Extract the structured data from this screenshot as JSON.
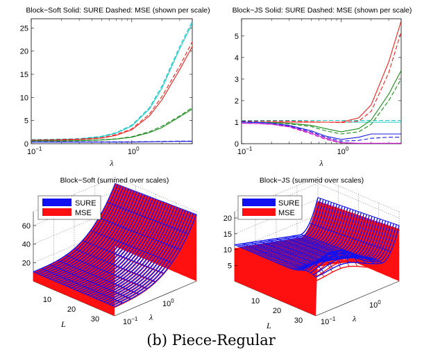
{
  "caption": "(b) Piece-Regular",
  "colors": {
    "cyan": "#19c6c6",
    "red": "#e8201c",
    "green": "#1a8a1a",
    "blue": "#1a1ae0",
    "magenta": "#c81ac8",
    "surface_blue": "#1010f0",
    "surface_red": "#ff1010"
  },
  "chart_data": [
    {
      "type": "line",
      "title": "Block−Soft Solid: SURE Dashed: MSE (shown per scale)",
      "xlabel": "λ",
      "ylabel": "",
      "xscale": "log",
      "xlim": [
        0.1,
        4
      ],
      "ylim": [
        0,
        27
      ],
      "yticks": [
        "0",
        "5",
        "10",
        "15",
        "20",
        "25"
      ],
      "xticks": [
        {
          "base": "10",
          "exp": "−1"
        },
        {
          "base": "10",
          "exp": "0"
        }
      ],
      "x": [
        0.1,
        0.15,
        0.2,
        0.3,
        0.5,
        0.7,
        1.0,
        1.5,
        2.0,
        3.0,
        4.0
      ],
      "series": [
        {
          "color": "cyan",
          "sure": [
            0.8,
            0.85,
            0.9,
            1.0,
            1.5,
            2.3,
            3.8,
            7.5,
            12.0,
            20.5,
            26.0
          ],
          "mse": [
            0.9,
            0.95,
            1.0,
            1.1,
            1.6,
            2.4,
            4.0,
            7.8,
            12.5,
            21.0,
            26.5
          ]
        },
        {
          "color": "red",
          "sure": [
            0.7,
            0.75,
            0.8,
            0.9,
            1.2,
            1.8,
            3.0,
            6.0,
            9.5,
            16.0,
            21.0
          ],
          "mse": [
            0.8,
            0.85,
            0.9,
            1.0,
            1.3,
            2.0,
            3.2,
            6.4,
            10.2,
            16.8,
            22.0
          ]
        },
        {
          "color": "green",
          "sure": [
            0.6,
            0.6,
            0.6,
            0.65,
            0.8,
            1.0,
            1.4,
            2.4,
            3.5,
            5.8,
            7.5
          ],
          "mse": [
            0.65,
            0.65,
            0.65,
            0.7,
            0.85,
            1.05,
            1.5,
            2.6,
            3.8,
            6.0,
            7.8
          ]
        },
        {
          "color": "blue",
          "sure": [
            0.35,
            0.35,
            0.35,
            0.35,
            0.35,
            0.35,
            0.35,
            0.4,
            0.45,
            0.5,
            0.5
          ],
          "mse": [
            0.4,
            0.4,
            0.4,
            0.4,
            0.4,
            0.4,
            0.4,
            0.45,
            0.5,
            0.55,
            0.55
          ]
        }
      ]
    },
    {
      "type": "line",
      "title": "Block−JS Solid: SURE Dashed: MSE (shown per scale)",
      "xlabel": "λ",
      "ylabel": "",
      "xscale": "log",
      "xlim": [
        0.1,
        4
      ],
      "ylim": [
        0,
        5.8
      ],
      "yticks": [
        "0",
        "1",
        "2",
        "3",
        "4",
        "5"
      ],
      "xticks": [
        {
          "base": "10",
          "exp": "−1"
        },
        {
          "base": "10",
          "exp": "0"
        }
      ],
      "x": [
        0.1,
        0.15,
        0.2,
        0.3,
        0.5,
        0.7,
        1.0,
        1.5,
        2.0,
        3.0,
        4.0
      ],
      "series": [
        {
          "color": "cyan",
          "sure": [
            1.0,
            1.0,
            1.0,
            1.0,
            1.0,
            1.0,
            1.0,
            1.0,
            1.0,
            1.0,
            1.0
          ],
          "mse": [
            1.08,
            1.08,
            1.08,
            1.08,
            1.08,
            1.08,
            1.08,
            1.08,
            1.08,
            1.08,
            1.08
          ]
        },
        {
          "color": "red",
          "sure": [
            1.0,
            1.0,
            1.0,
            1.0,
            1.0,
            1.0,
            1.0,
            1.2,
            1.8,
            3.8,
            5.7
          ],
          "mse": [
            1.05,
            1.05,
            1.05,
            1.05,
            1.02,
            1.0,
            0.98,
            1.05,
            1.5,
            3.3,
            5.2
          ]
        },
        {
          "color": "green",
          "sure": [
            1.0,
            1.0,
            0.98,
            0.95,
            0.85,
            0.7,
            0.55,
            0.7,
            1.1,
            2.3,
            3.4
          ],
          "mse": [
            1.0,
            1.0,
            0.98,
            0.92,
            0.8,
            0.6,
            0.45,
            0.55,
            0.9,
            2.0,
            3.0
          ]
        },
        {
          "color": "blue",
          "sure": [
            1.0,
            0.98,
            0.95,
            0.85,
            0.6,
            0.35,
            0.2,
            0.3,
            0.45,
            0.45,
            0.45
          ],
          "mse": [
            1.02,
            1.0,
            0.95,
            0.82,
            0.55,
            0.3,
            0.12,
            0.15,
            0.25,
            0.3,
            0.3
          ]
        },
        {
          "color": "magenta",
          "sure": [
            0.95,
            0.93,
            0.9,
            0.8,
            0.5,
            0.25,
            0.05,
            0.02,
            0.02,
            0.02,
            0.02
          ],
          "mse": [
            0.95,
            0.93,
            0.9,
            0.78,
            0.45,
            0.2,
            0.04,
            0.02,
            0.02,
            0.02,
            0.02
          ]
        }
      ]
    },
    {
      "type": "surface",
      "title": "Block−Soft (summed over scales)",
      "legend": [
        "SURE",
        "MSE"
      ],
      "xlabel": "L",
      "ylabel": "λ",
      "xticks": [
        "10",
        "20",
        "30"
      ],
      "yticks": [
        {
          "base": "10",
          "exp": "−1"
        },
        {
          "base": "10",
          "exp": "0"
        }
      ],
      "zticks": [
        "20",
        "40",
        "60"
      ],
      "zlim": [
        0,
        75
      ]
    },
    {
      "type": "surface",
      "title": "Block−JS (summed over scales)",
      "legend": [
        "SURE",
        "MSE"
      ],
      "xlabel": "L",
      "ylabel": "λ",
      "xticks": [
        "10",
        "20",
        "30"
      ],
      "yticks": [
        {
          "base": "10",
          "exp": "−1"
        },
        {
          "base": "10",
          "exp": "0"
        }
      ],
      "zticks": [
        "5",
        "10",
        "15",
        "20"
      ],
      "zlim": [
        0,
        22
      ]
    }
  ]
}
